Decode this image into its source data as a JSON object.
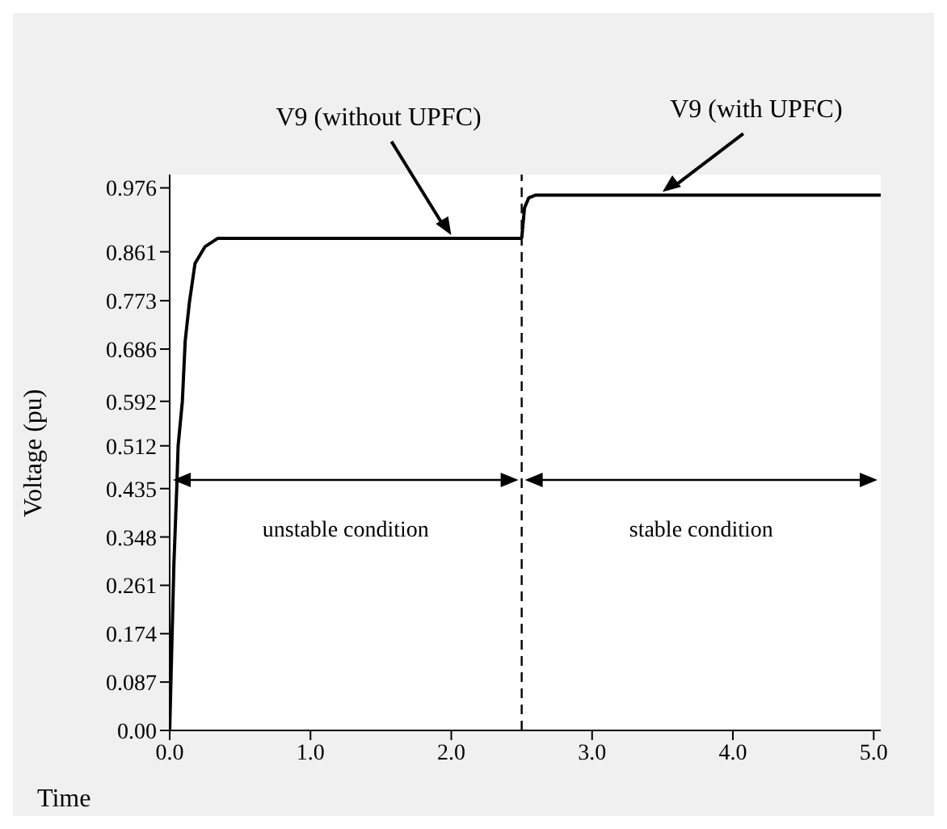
{
  "chart_data": {
    "type": "line",
    "xlabel": "Time",
    "ylabel": "Voltage (pu)",
    "xlim": [
      0,
      5.05
    ],
    "xticks": [
      {
        "value": 0,
        "label": "0.0"
      },
      {
        "value": 1,
        "label": "1.0"
      },
      {
        "value": 2,
        "label": "2.0"
      },
      {
        "value": 3,
        "label": "3.0"
      },
      {
        "value": 4,
        "label": "4.0"
      },
      {
        "value": 5,
        "label": "5.0"
      }
    ],
    "ylim": [
      0,
      1.0
    ],
    "yticks": [
      {
        "value": 0,
        "label": "0.00"
      },
      0.087,
      0.174,
      0.261,
      0.348,
      0.435,
      0.512,
      0.592,
      0.686,
      0.773,
      0.861,
      0.976
    ],
    "series": [
      {
        "name": "V9 (without UPFC)",
        "color": "#000000",
        "x": [
          0,
          0.03,
          0.05,
          0.06,
          0.09,
          0.11,
          0.14,
          0.18,
          0.25,
          0.34,
          1.0,
          2.0,
          2.5
        ],
        "values": [
          0,
          0.3,
          0.435,
          0.512,
          0.592,
          0.7,
          0.77,
          0.84,
          0.87,
          0.885,
          0.885,
          0.885,
          0.885
        ]
      },
      {
        "name": "V9 (with UPFC)",
        "color": "#000000",
        "x": [
          2.5,
          2.52,
          2.55,
          2.6,
          3.0,
          3.5,
          4.0,
          5.05
        ],
        "values": [
          0.885,
          0.94,
          0.958,
          0.963,
          0.963,
          0.963,
          0.963,
          0.963
        ]
      }
    ],
    "ref_lines": [
      {
        "axis": "x",
        "value": 2.5,
        "color": "#000000",
        "line_style": "dashed"
      }
    ],
    "annotations": [
      "unstable condition",
      "stable condition"
    ],
    "grid": false,
    "legend": false,
    "marker": "none",
    "line_style": "solid"
  }
}
